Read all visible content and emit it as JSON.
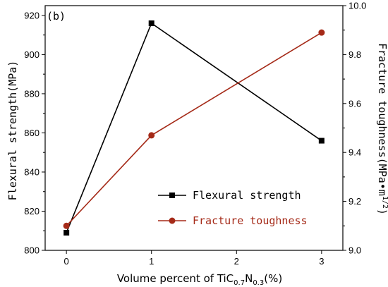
{
  "chart_data": {
    "type": "line",
    "panel_label": "(b)",
    "x": [
      0,
      1,
      3
    ],
    "xlabel": {
      "prefix": "Volume percent of TiC",
      "sub1": "0.7",
      "mid": "N",
      "sub2": "0.3",
      "suffix": "(%)"
    },
    "x_ticks": [
      "0",
      "1",
      "2",
      "3"
    ],
    "xlim": [
      -0.25,
      3.25
    ],
    "y_left": {
      "label": "Flexural strength(MPa)",
      "ticks": [
        "800",
        "820",
        "840",
        "860",
        "880",
        "900",
        "920"
      ],
      "ylim": [
        800,
        925
      ]
    },
    "y_right": {
      "label_prefix": "Fracture toughness(MPa",
      "label_sep": "•",
      "label_m": "m",
      "label_exp": "1/2",
      "label_suffix": ")",
      "ticks": [
        "9.0",
        "9.2",
        "9.4",
        "9.6",
        "9.8",
        "10.0"
      ],
      "ylim": [
        9.0,
        10.0
      ]
    },
    "series": [
      {
        "name": "Flexural strength",
        "axis": "left",
        "color": "#000000",
        "marker": "square",
        "values": [
          809,
          916,
          856
        ]
      },
      {
        "name": "Fracture toughness",
        "axis": "right",
        "color": "#a52a18",
        "marker": "circle",
        "values": [
          9.1,
          9.47,
          9.89
        ]
      }
    ],
    "legend": {
      "placement": "bottom-right"
    }
  }
}
